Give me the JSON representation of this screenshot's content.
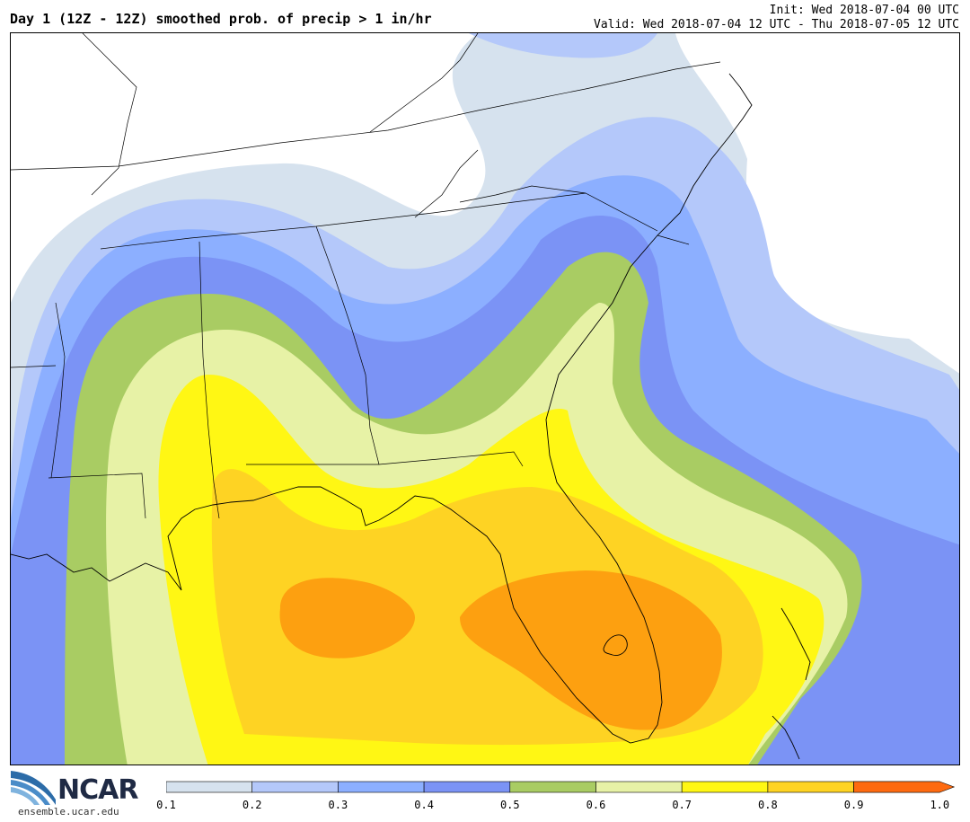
{
  "header": {
    "title": "Day 1 (12Z - 12Z) smoothed prob. of precip > 1 in/hr",
    "init": "Init: Wed 2018-07-04 00 UTC",
    "valid": "Valid: Wed 2018-07-04 12 UTC - Thu 2018-07-05 12 UTC"
  },
  "logo": {
    "name": "NCAR",
    "url": "ensemble.ucar.edu"
  },
  "colorbar": {
    "ticks": [
      "0.1",
      "0.2",
      "0.3",
      "0.4",
      "0.5",
      "0.6",
      "0.7",
      "0.8",
      "0.9",
      "1.0"
    ],
    "colors": [
      "#d6e2ee",
      "#b4c8fa",
      "#8cafff",
      "#7b93f5",
      "#a9cc63",
      "#e7f2a6",
      "#fff714",
      "#fed323",
      "#fda010",
      "#fe6a10"
    ]
  }
}
